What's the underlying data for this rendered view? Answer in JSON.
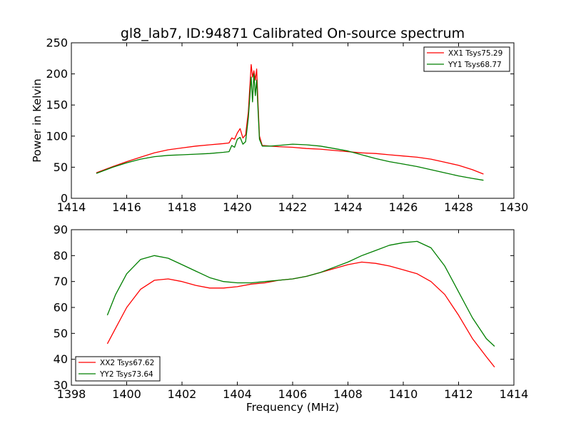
{
  "figure": {
    "title": "gl8_lab7, ID:94871 Calibrated On-source spectrum",
    "background": "#ffffff"
  },
  "colors": {
    "xx": "#ff0000",
    "yy": "#007f00"
  },
  "chart_data": [
    {
      "type": "line",
      "title": "gl8_lab7, ID:94871 Calibrated On-source spectrum",
      "xlabel": "",
      "ylabel": "Power in Kelvin",
      "xlim": [
        1414,
        1430
      ],
      "ylim": [
        0,
        250
      ],
      "xticks": [
        1414,
        1416,
        1418,
        1420,
        1422,
        1424,
        1426,
        1428,
        1430
      ],
      "yticks": [
        0,
        50,
        100,
        150,
        200,
        250
      ],
      "grid": false,
      "legend_position": "top-right",
      "series": [
        {
          "name": "XX1 Tsys75.29",
          "color": "#ff0000",
          "x": [
            1414.9,
            1415.5,
            1416.0,
            1416.5,
            1417.0,
            1417.5,
            1418.0,
            1418.5,
            1419.0,
            1419.5,
            1419.7,
            1419.8,
            1419.9,
            1420.0,
            1420.1,
            1420.2,
            1420.3,
            1420.4,
            1420.5,
            1420.55,
            1420.6,
            1420.65,
            1420.7,
            1420.75,
            1420.8,
            1420.9,
            1421.2,
            1421.5,
            1422.0,
            1422.5,
            1423.0,
            1423.5,
            1424.0,
            1424.5,
            1425.0,
            1425.5,
            1426.0,
            1426.5,
            1427.0,
            1427.5,
            1428.0,
            1428.5,
            1428.9
          ],
          "y": [
            41,
            51,
            59,
            66,
            73,
            78,
            81,
            84,
            86,
            88,
            89,
            97,
            95,
            105,
            112,
            97,
            102,
            140,
            215,
            195,
            205,
            190,
            208,
            150,
            100,
            85,
            84,
            83,
            82,
            80,
            79,
            77,
            75,
            73,
            72,
            70,
            68,
            66,
            63,
            58,
            53,
            46,
            39
          ]
        },
        {
          "name": "YY1 Tsys68.77",
          "color": "#007f00",
          "x": [
            1414.9,
            1415.5,
            1416.0,
            1416.5,
            1417.0,
            1417.5,
            1418.0,
            1418.5,
            1419.0,
            1419.5,
            1419.7,
            1419.8,
            1419.9,
            1420.0,
            1420.1,
            1420.2,
            1420.3,
            1420.4,
            1420.5,
            1420.55,
            1420.6,
            1420.65,
            1420.7,
            1420.75,
            1420.8,
            1420.9,
            1421.2,
            1421.5,
            1422.0,
            1422.5,
            1423.0,
            1423.5,
            1424.0,
            1424.5,
            1425.0,
            1425.5,
            1426.0,
            1426.5,
            1427.0,
            1427.5,
            1428.0,
            1428.5,
            1428.9
          ],
          "y": [
            40,
            50,
            57,
            63,
            67,
            69,
            70,
            71,
            72,
            74,
            75,
            85,
            82,
            95,
            98,
            87,
            91,
            130,
            195,
            155,
            200,
            165,
            190,
            140,
            95,
            84,
            84,
            85,
            87,
            86,
            84,
            80,
            76,
            70,
            64,
            59,
            55,
            51,
            46,
            41,
            36,
            32,
            29
          ]
        }
      ]
    },
    {
      "type": "line",
      "title": "",
      "xlabel": "Frequency (MHz)",
      "ylabel": "",
      "xlim": [
        1398,
        1414
      ],
      "ylim": [
        30,
        90
      ],
      "xticks": [
        1398,
        1400,
        1402,
        1404,
        1406,
        1408,
        1410,
        1412,
        1414
      ],
      "yticks": [
        30,
        40,
        50,
        60,
        70,
        80,
        90
      ],
      "grid": false,
      "legend_position": "bottom-left",
      "series": [
        {
          "name": "XX2 Tsys67.62",
          "color": "#ff0000",
          "x": [
            1399.3,
            1399.6,
            1400.0,
            1400.5,
            1401.0,
            1401.5,
            1402.0,
            1402.5,
            1403.0,
            1403.5,
            1404.0,
            1404.5,
            1405.0,
            1405.5,
            1406.0,
            1406.5,
            1407.0,
            1407.5,
            1408.0,
            1408.5,
            1409.0,
            1409.5,
            1410.0,
            1410.5,
            1411.0,
            1411.5,
            1412.0,
            1412.5,
            1413.0,
            1413.3
          ],
          "y": [
            46,
            52,
            60,
            67,
            70.5,
            71,
            70,
            68.5,
            67.5,
            67.5,
            68,
            69,
            69.5,
            70.5,
            71,
            72,
            73.5,
            75,
            76.5,
            77.5,
            77,
            76,
            74.5,
            73,
            70,
            65,
            57,
            48,
            41,
            37
          ]
        },
        {
          "name": "YY2 Tsys73.64",
          "color": "#007f00",
          "x": [
            1399.3,
            1399.6,
            1400.0,
            1400.5,
            1401.0,
            1401.5,
            1402.0,
            1402.5,
            1403.0,
            1403.5,
            1404.0,
            1404.5,
            1405.0,
            1405.5,
            1406.0,
            1406.5,
            1407.0,
            1407.5,
            1408.0,
            1408.5,
            1409.0,
            1409.5,
            1410.0,
            1410.5,
            1411.0,
            1411.5,
            1412.0,
            1412.5,
            1413.0,
            1413.3
          ],
          "y": [
            57,
            65,
            73,
            78.5,
            80,
            79,
            76.5,
            74,
            71.5,
            70,
            69.5,
            69.5,
            70,
            70.5,
            71,
            72,
            73.5,
            75.5,
            77.5,
            80,
            82,
            84,
            85,
            85.5,
            83,
            76,
            66,
            56,
            48,
            45
          ]
        }
      ]
    }
  ]
}
